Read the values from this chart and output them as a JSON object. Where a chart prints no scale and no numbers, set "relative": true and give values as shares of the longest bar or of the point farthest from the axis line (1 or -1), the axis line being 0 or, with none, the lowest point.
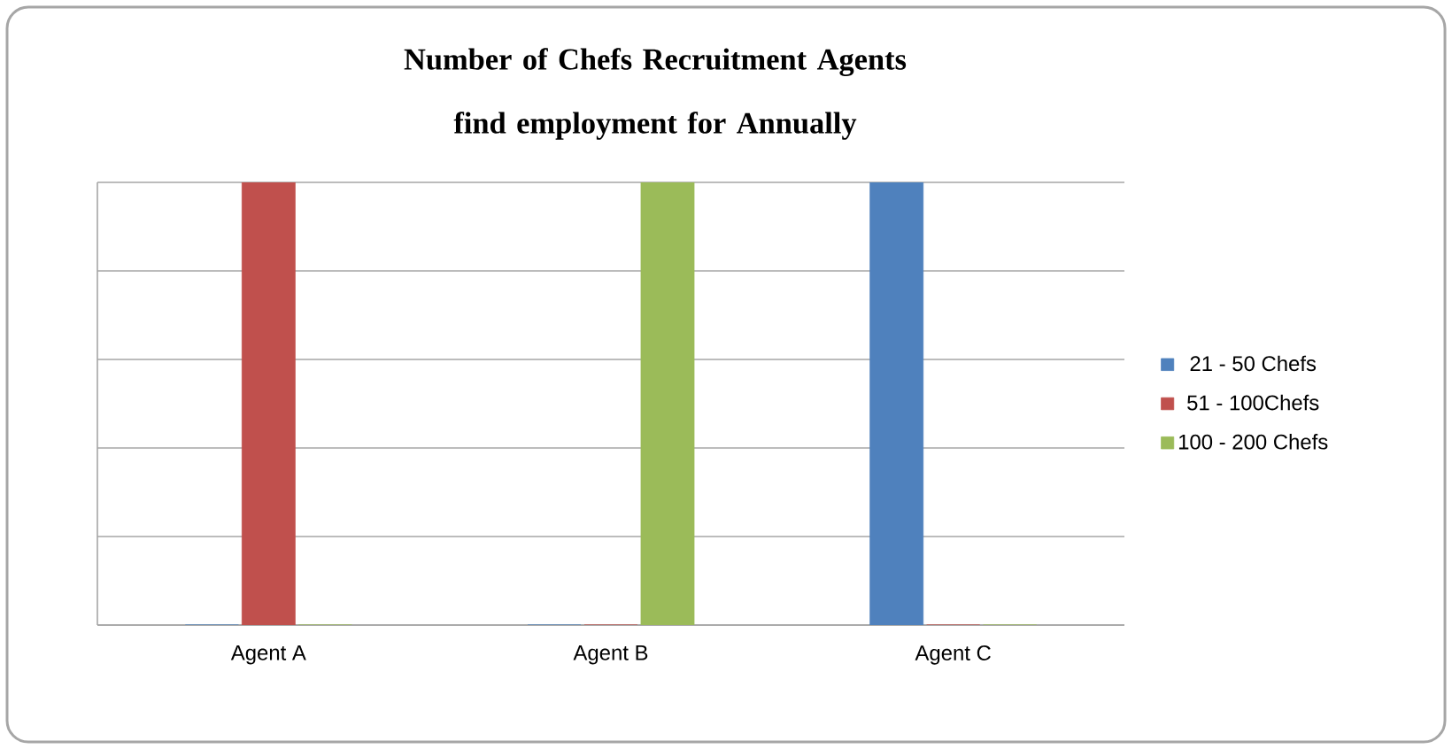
{
  "chart_data": {
    "type": "bar",
    "title": "Number of Chefs Recruitment Agents find employment for Annually",
    "categories": [
      "Agent A",
      "Agent B",
      "Agent C"
    ],
    "relative": true,
    "grid": "y",
    "legend": "right",
    "tick_labels": "x",
    "series": [
      {
        "name": "21 - 50 Chefs",
        "color": "#4f81bd",
        "values": [
          0,
          0,
          1
        ]
      },
      {
        "name": "51 - 100Chefs",
        "color": "#c0504d",
        "values": [
          1,
          0,
          0
        ]
      },
      {
        "name": "100 - 200 Chefs",
        "color": "#9bbb59",
        "values": [
          0,
          1,
          0
        ]
      }
    ]
  }
}
